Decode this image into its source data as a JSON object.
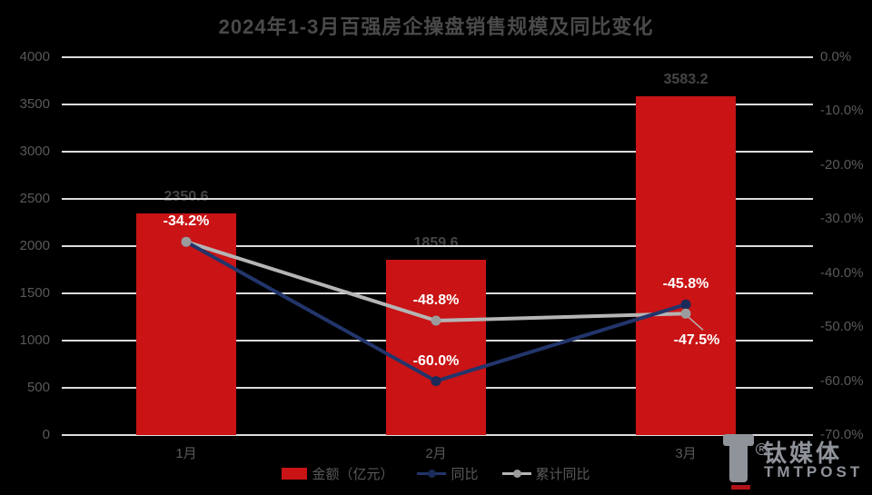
{
  "title": "2024年1-3月百强房企操盘销售规模及同比变化",
  "colors": {
    "background": "#000000",
    "bar": "#c91315",
    "yoy_line": "#22356b",
    "yoy_marker": "#1b2a58",
    "cum_line": "#b5b5b5",
    "cum_marker": "#9c9c9c",
    "gridline": "#dcdcdc",
    "title_text": "#4a4a4a",
    "axis_text": "#595959",
    "point_label_text": "#ffffff"
  },
  "chart_data": {
    "type": "bar+line combo",
    "title": "2024年1-3月百强房企操盘销售规模及同比变化",
    "categories": [
      "1月",
      "2月",
      "3月"
    ],
    "series": [
      {
        "name": "金额（亿元）",
        "type": "bar",
        "axis": "left",
        "values": [
          2350.6,
          1859.6,
          3583.2
        ],
        "value_labels": [
          "2350.6",
          "1859.6",
          "3583.2"
        ]
      },
      {
        "name": "同比",
        "type": "line",
        "axis": "right",
        "values": [
          -34.2,
          -60.0,
          -45.8
        ],
        "value_labels": [
          "-34.2%",
          "-60.0%",
          "-45.8%"
        ]
      },
      {
        "name": "累计同比",
        "type": "line",
        "axis": "right",
        "values": [
          -34.2,
          -48.8,
          -47.5
        ],
        "value_labels": [
          null,
          "-48.8%",
          "-47.5%"
        ]
      }
    ],
    "left_axis": {
      "min": 0,
      "max": 4000,
      "step": 500,
      "ticks": [
        "4000",
        "3500",
        "3000",
        "2500",
        "2000",
        "1500",
        "1000",
        "500",
        "0"
      ]
    },
    "right_axis": {
      "min": -70,
      "max": 0,
      "step": 10,
      "ticks": [
        "0.0%",
        "-10.0%",
        "-20.0%",
        "-30.0%",
        "-40.0%",
        "-50.0%",
        "-60.0%",
        "-70.0%"
      ]
    },
    "grid": true,
    "legend_position": "bottom"
  },
  "watermark": {
    "brand": "钛媒体",
    "brand_en": "TMTPOST",
    "registered_mark": "R",
    "logo": "tmtpost-t-logo"
  }
}
